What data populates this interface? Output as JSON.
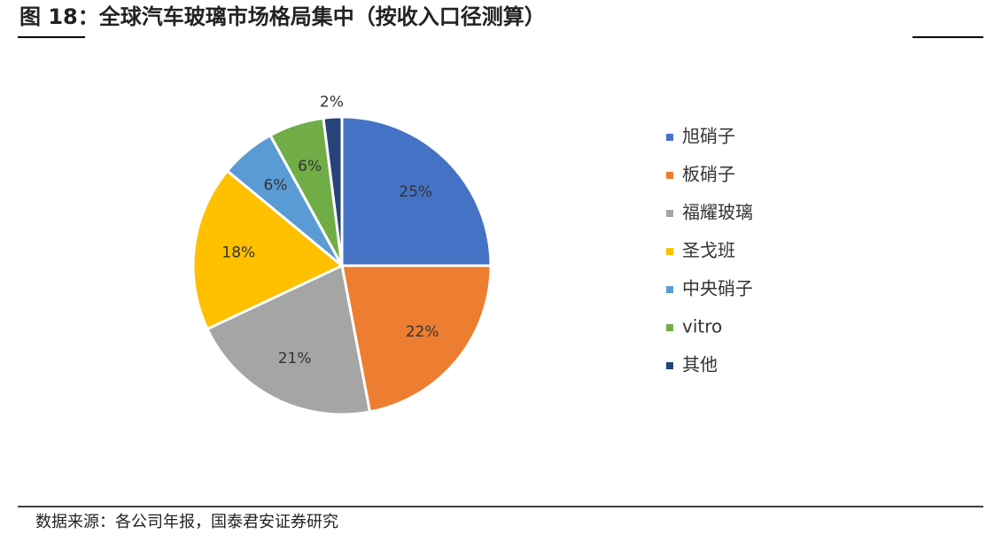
{
  "chart_data": {
    "type": "pie",
    "title": "图 18：全球汽车玻璃市场格局集中（按收入口径测算）",
    "source": "数据来源：各公司年报，国泰君安证券研究",
    "categories": [
      "旭硝子",
      "板硝子",
      "福耀玻璃",
      "圣戈班",
      "中央硝子",
      "vitro",
      "其他"
    ],
    "values": [
      25,
      22,
      21,
      18,
      6,
      6,
      2
    ],
    "value_labels": [
      "25%",
      "22%",
      "21%",
      "18%",
      "6%",
      "6%",
      "2%"
    ],
    "colors": [
      "#4472c4",
      "#ed7d31",
      "#a5a5a5",
      "#ffc000",
      "#5b9bd5",
      "#70ad47",
      "#264478"
    ],
    "legend": "right"
  }
}
